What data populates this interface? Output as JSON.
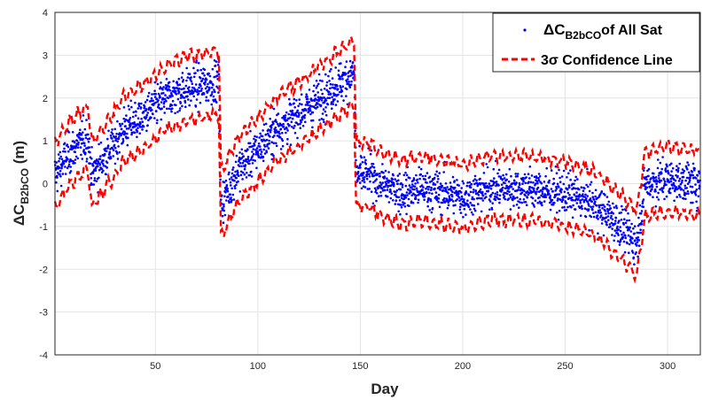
{
  "chart_data": {
    "type": "scatter",
    "xlabel": "Day",
    "ylabel_main": "ΔC",
    "ylabel_sub": "B2bCO",
    "ylabel_unit": " (m)",
    "xlim": [
      1,
      316
    ],
    "ylim": [
      -4,
      4
    ],
    "xticks": [
      50,
      100,
      150,
      200,
      250,
      300
    ],
    "yticks": [
      -4,
      -3,
      -2,
      -1,
      0,
      1,
      2,
      3,
      4
    ],
    "grid": true,
    "legend_position": "top-right",
    "colors": {
      "scatter": "#0000ff",
      "confidence": "#ff0000"
    },
    "series": [
      {
        "name_main": "ΔC",
        "name_sub": "B2bCO",
        "name_rest": "of All Sat",
        "kind": "scatter",
        "trend": [
          [
            1,
            0.2
          ],
          [
            8,
            0.7
          ],
          [
            17,
            1.1
          ],
          [
            19,
            0.2
          ],
          [
            25,
            0.6
          ],
          [
            35,
            1.3
          ],
          [
            45,
            1.6
          ],
          [
            55,
            2.0
          ],
          [
            65,
            2.2
          ],
          [
            81,
            2.4
          ],
          [
            82,
            -0.5
          ],
          [
            90,
            0.3
          ],
          [
            100,
            0.8
          ],
          [
            110,
            1.3
          ],
          [
            120,
            1.6
          ],
          [
            130,
            2.0
          ],
          [
            147,
            2.6
          ],
          [
            148,
            0.2
          ],
          [
            155,
            0.2
          ],
          [
            160,
            0.0
          ],
          [
            170,
            -0.2
          ],
          [
            180,
            -0.1
          ],
          [
            200,
            -0.3
          ],
          [
            215,
            -0.1
          ],
          [
            230,
            -0.1
          ],
          [
            245,
            -0.2
          ],
          [
            255,
            -0.3
          ],
          [
            265,
            -0.5
          ],
          [
            275,
            -0.9
          ],
          [
            285,
            -1.4
          ],
          [
            289,
            0.0
          ],
          [
            300,
            0.1
          ],
          [
            316,
            0.0
          ]
        ],
        "spread": 0.4
      },
      {
        "name_main": "3σ Confidence Line",
        "kind": "band",
        "halfwidth": 0.75
      }
    ]
  }
}
